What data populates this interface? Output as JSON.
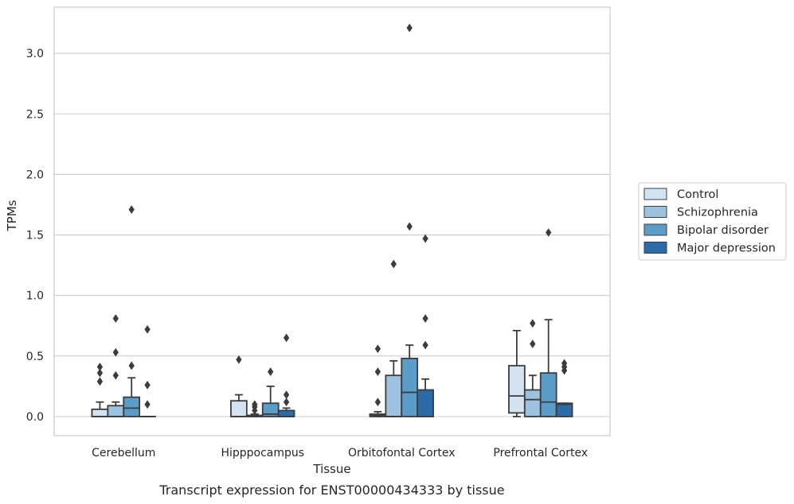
{
  "chart_data": {
    "type": "box",
    "title": "",
    "caption": "Transcript expression for ENST00000434333 by tissue",
    "xlabel": "Tissue",
    "ylabel": "TPMs",
    "ylim": [
      -0.16,
      3.38
    ],
    "yticks": [
      0.0,
      0.5,
      1.0,
      1.5,
      2.0,
      2.5,
      3.0
    ],
    "ytick_labels": [
      "0.0",
      "0.5",
      "1.0",
      "1.5",
      "2.0",
      "2.5",
      "3.0"
    ],
    "grid": "horizontal",
    "legend_position": "right",
    "categories": [
      "Cerebellum",
      "Hipppocampus",
      "Orbitofontal Cortex",
      "Prefrontal Cortex"
    ],
    "series": [
      {
        "name": "Control",
        "color": "#d4e3f2",
        "boxes": [
          {
            "whislo": 0.0,
            "q1": 0.0,
            "med": 0.0,
            "q3": 0.06,
            "whishi": 0.12,
            "fliers": [
              0.29,
              0.36,
              0.41
            ]
          },
          {
            "whislo": 0.0,
            "q1": 0.0,
            "med": 0.0,
            "q3": 0.13,
            "whishi": 0.18,
            "fliers": [
              0.47
            ]
          },
          {
            "whislo": 0.0,
            "q1": 0.0,
            "med": 0.01,
            "q3": 0.02,
            "whishi": 0.04,
            "fliers": [
              0.12,
              0.37,
              0.56
            ]
          },
          {
            "whislo": 0.0,
            "q1": 0.03,
            "med": 0.17,
            "q3": 0.42,
            "whishi": 0.71,
            "fliers": []
          }
        ]
      },
      {
        "name": "Schizophrenia",
        "color": "#9cc2df",
        "boxes": [
          {
            "whislo": 0.0,
            "q1": 0.0,
            "med": 0.0,
            "q3": 0.09,
            "whishi": 0.12,
            "fliers": [
              0.34,
              0.53,
              0.81
            ]
          },
          {
            "whislo": 0.0,
            "q1": 0.0,
            "med": 0.0,
            "q3": 0.01,
            "whishi": 0.02,
            "fliers": [
              0.05,
              0.08,
              0.1
            ]
          },
          {
            "whislo": 0.0,
            "q1": 0.0,
            "med": 0.0,
            "q3": 0.34,
            "whishi": 0.46,
            "fliers": [
              1.26
            ]
          },
          {
            "whislo": 0.0,
            "q1": 0.0,
            "med": 0.14,
            "q3": 0.22,
            "whishi": 0.34,
            "fliers": [
              0.6,
              0.77
            ]
          }
        ]
      },
      {
        "name": "Bipolar disorder",
        "color": "#5b9cc8",
        "boxes": [
          {
            "whislo": 0.0,
            "q1": 0.0,
            "med": 0.07,
            "q3": 0.16,
            "whishi": 0.32,
            "fliers": [
              0.42,
              1.71
            ]
          },
          {
            "whislo": 0.0,
            "q1": 0.0,
            "med": 0.02,
            "q3": 0.11,
            "whishi": 0.25,
            "fliers": [
              0.37
            ]
          },
          {
            "whislo": 0.0,
            "q1": 0.0,
            "med": 0.2,
            "q3": 0.48,
            "whishi": 0.59,
            "fliers": [
              1.57,
              3.21
            ]
          },
          {
            "whislo": 0.0,
            "q1": 0.0,
            "med": 0.12,
            "q3": 0.36,
            "whishi": 0.8,
            "fliers": [
              1.52
            ]
          }
        ]
      },
      {
        "name": "Major depression",
        "color": "#2b6ba8",
        "boxes": [
          {
            "whislo": 0.0,
            "q1": 0.0,
            "med": 0.0,
            "q3": 0.0,
            "whishi": 0.0,
            "fliers": [
              0.1,
              0.26,
              0.72
            ]
          },
          {
            "whislo": 0.0,
            "q1": 0.0,
            "med": 0.0,
            "q3": 0.05,
            "whishi": 0.07,
            "fliers": [
              0.12,
              0.18,
              0.65
            ]
          },
          {
            "whislo": 0.0,
            "q1": 0.0,
            "med": 0.0,
            "q3": 0.22,
            "whishi": 0.31,
            "fliers": [
              0.59,
              0.81,
              1.47
            ]
          },
          {
            "whislo": 0.0,
            "q1": 0.0,
            "med": 0.1,
            "q3": 0.11,
            "whishi": 0.11,
            "fliers": [
              0.38,
              0.41,
              0.44
            ]
          }
        ]
      }
    ]
  }
}
